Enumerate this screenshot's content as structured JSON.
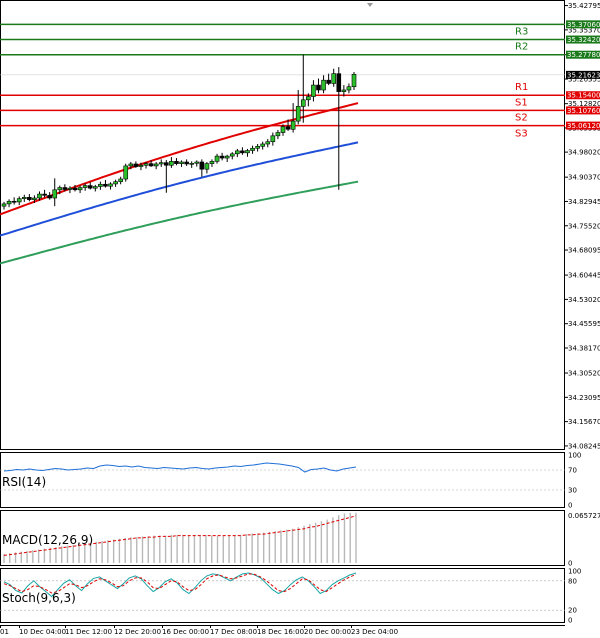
{
  "chart_data": {
    "type": "candlestick",
    "timeframe_labels": [
      "01",
      "10 Dec 04:00",
      "11 Dec 12:00",
      "12 Dec 20:00",
      "16 Dec 00:00",
      "17 Dec 08:00",
      "18 Dec 16:00",
      "20 Dec 00:00",
      "23 Dec 04:00"
    ],
    "price_ticks": [
      35.42795,
      35.3537,
      35.2778,
      35.20355,
      35.1282,
      35.05395,
      34.9802,
      34.9037,
      34.82945,
      34.7552,
      34.68095,
      34.60445,
      34.5302,
      34.45595,
      34.3817,
      34.3052,
      34.23095,
      34.1567,
      34.08245
    ],
    "ylim": [
      34.07,
      35.445
    ],
    "current_price": 35.21623,
    "levels": [
      {
        "label": "",
        "value": 35.3706,
        "tag": "35.37060",
        "color": "#1a7a1a"
      },
      {
        "label": "R3",
        "value": 35.3242,
        "tag": "35.32420",
        "color": "#1a7a1a"
      },
      {
        "label": "R2",
        "value": 35.2778,
        "tag": "35.27780",
        "color": "#1a7a1a"
      },
      {
        "label": "R1",
        "value": 35.154,
        "tag": "35.15400",
        "color": "#e00000"
      },
      {
        "label": "S1",
        "value": 35.1076,
        "tag": "35.10760",
        "color": "#e00000"
      },
      {
        "label": "S2",
        "value": 35.0612,
        "tag": "35.06120",
        "color": "#e00000"
      },
      {
        "label": "S3",
        "value": null,
        "tag": "",
        "color": "#e00000"
      }
    ],
    "candles": [
      [
        34.815,
        34.828,
        34.805,
        34.822
      ],
      [
        34.822,
        34.836,
        34.812,
        34.83
      ],
      [
        34.83,
        34.842,
        34.82,
        34.828
      ],
      [
        34.828,
        34.845,
        34.818,
        34.838
      ],
      [
        34.838,
        34.85,
        34.828,
        34.842
      ],
      [
        34.842,
        34.852,
        34.83,
        34.835
      ],
      [
        34.835,
        34.848,
        34.825,
        34.84
      ],
      [
        34.84,
        34.86,
        34.832,
        34.852
      ],
      [
        34.852,
        34.865,
        34.842,
        34.848
      ],
      [
        34.848,
        34.858,
        34.835,
        34.84
      ],
      [
        34.84,
        34.9,
        34.815,
        34.865
      ],
      [
        34.865,
        34.878,
        34.852,
        34.872
      ],
      [
        34.872,
        34.882,
        34.86,
        34.866
      ],
      [
        34.866,
        34.876,
        34.855,
        34.87
      ],
      [
        34.87,
        34.88,
        34.86,
        34.865
      ],
      [
        34.865,
        34.878,
        34.855,
        34.872
      ],
      [
        34.872,
        34.885,
        34.862,
        34.878
      ],
      [
        34.878,
        34.888,
        34.866,
        34.87
      ],
      [
        34.87,
        34.88,
        34.86,
        34.875
      ],
      [
        34.875,
        34.89,
        34.865,
        34.882
      ],
      [
        34.882,
        34.895,
        34.872,
        34.876
      ],
      [
        34.876,
        34.888,
        34.866,
        34.883
      ],
      [
        34.883,
        34.896,
        34.874,
        34.89
      ],
      [
        34.89,
        34.905,
        34.882,
        34.898
      ],
      [
        34.898,
        34.945,
        34.89,
        34.938
      ],
      [
        34.938,
        34.95,
        34.928,
        34.944
      ],
      [
        34.944,
        34.952,
        34.932,
        34.936
      ],
      [
        34.936,
        34.948,
        34.925,
        34.94
      ],
      [
        34.94,
        34.95,
        34.93,
        34.945
      ],
      [
        34.945,
        34.955,
        34.935,
        34.938
      ],
      [
        34.938,
        34.95,
        34.928,
        34.944
      ],
      [
        34.944,
        34.958,
        34.935,
        34.948
      ],
      [
        34.948,
        34.956,
        34.856,
        34.94
      ],
      [
        34.94,
        34.965,
        34.932,
        34.952
      ],
      [
        34.952,
        34.962,
        34.94,
        34.945
      ],
      [
        34.945,
        34.955,
        34.935,
        34.95
      ],
      [
        34.95,
        34.958,
        34.938,
        34.944
      ],
      [
        34.944,
        34.952,
        34.932,
        34.946
      ],
      [
        34.946,
        34.955,
        34.936,
        34.95
      ],
      [
        34.95,
        34.958,
        34.905,
        34.928
      ],
      [
        34.928,
        34.95,
        34.915,
        34.945
      ],
      [
        34.945,
        34.958,
        34.935,
        34.952
      ],
      [
        34.952,
        34.975,
        34.945,
        34.968
      ],
      [
        34.968,
        34.978,
        34.955,
        34.962
      ],
      [
        34.962,
        34.972,
        34.95,
        34.968
      ],
      [
        34.968,
        34.98,
        34.958,
        34.975
      ],
      [
        34.975,
        34.99,
        34.965,
        34.984
      ],
      [
        34.984,
        34.995,
        34.972,
        34.978
      ],
      [
        34.978,
        34.99,
        34.966,
        34.985
      ],
      [
        34.985,
        35.0,
        34.975,
        34.992
      ],
      [
        34.992,
        35.005,
        34.982,
        34.998
      ],
      [
        34.998,
        35.012,
        34.988,
        35.005
      ],
      [
        35.005,
        35.02,
        34.995,
        35.012
      ],
      [
        35.012,
        35.04,
        35.0,
        35.03
      ],
      [
        35.03,
        35.048,
        35.02,
        35.04
      ],
      [
        35.04,
        35.065,
        35.03,
        35.058
      ],
      [
        35.058,
        35.08,
        35.045,
        35.05
      ],
      [
        35.05,
        35.13,
        35.04,
        35.075
      ],
      [
        35.075,
        35.17,
        35.065,
        35.12
      ],
      [
        35.12,
        35.278,
        35.07,
        35.14
      ],
      [
        35.14,
        35.16,
        35.12,
        35.15
      ],
      [
        35.15,
        35.2,
        35.135,
        35.185
      ],
      [
        35.185,
        35.205,
        35.16,
        35.17
      ],
      [
        35.17,
        35.215,
        35.16,
        35.2
      ],
      [
        35.2,
        35.22,
        35.185,
        35.19
      ],
      [
        35.19,
        35.235,
        35.18,
        35.22
      ],
      [
        35.22,
        35.24,
        34.865,
        35.165
      ],
      [
        35.165,
        35.185,
        35.15,
        35.17
      ],
      [
        35.17,
        35.19,
        35.16,
        35.18
      ],
      [
        35.18,
        35.225,
        35.17,
        35.218
      ]
    ],
    "ma_series": [
      {
        "color": "#e00000",
        "start": 34.79,
        "end": 35.13
      },
      {
        "color": "#1f4fd8",
        "start": 34.725,
        "end": 35.01
      },
      {
        "color": "#2e9e5a",
        "start": 34.64,
        "end": 34.89
      }
    ],
    "indicators": [
      {
        "name": "RSI(14)",
        "ticks": [
          "100",
          "70",
          "30",
          "0"
        ],
        "levels": [
          70,
          30
        ],
        "values": [
          68,
          69,
          71,
          70,
          72,
          70,
          69,
          71,
          73,
          72,
          70,
          71,
          72,
          74,
          73,
          78,
          80,
          79,
          77,
          78,
          76,
          78,
          75,
          74,
          73,
          75,
          74,
          73,
          72,
          74,
          75,
          73,
          72,
          74,
          75,
          76,
          78,
          77,
          79,
          80,
          82,
          84,
          83,
          82,
          80,
          78,
          75,
          66,
          71,
          72,
          74,
          70,
          68,
          72,
          74,
          76
        ]
      },
      {
        "name": "MACD(12,26,9)",
        "ticks": [
          "0.065727",
          "0"
        ],
        "max": 0.065727,
        "hist": [
          0.012,
          0.013,
          0.014,
          0.015,
          0.016,
          0.017,
          0.018,
          0.019,
          0.02,
          0.021,
          0.022,
          0.023,
          0.024,
          0.025,
          0.026,
          0.027,
          0.028,
          0.029,
          0.03,
          0.031,
          0.032,
          0.033,
          0.034,
          0.034,
          0.035,
          0.035,
          0.036,
          0.036,
          0.036,
          0.037,
          0.037,
          0.037,
          0.036,
          0.037,
          0.037,
          0.037,
          0.036,
          0.036,
          0.036,
          0.036,
          0.037,
          0.037,
          0.038,
          0.039,
          0.039,
          0.04,
          0.041,
          0.042,
          0.043,
          0.044,
          0.045,
          0.047,
          0.049,
          0.051,
          0.053,
          0.055,
          0.057,
          0.06,
          0.063,
          0.065,
          0.066,
          0.066
        ],
        "signal": [
          0.01,
          0.011,
          0.012,
          0.013,
          0.014,
          0.015,
          0.016,
          0.017,
          0.018,
          0.019,
          0.02,
          0.021,
          0.022,
          0.023,
          0.024,
          0.025,
          0.026,
          0.027,
          0.028,
          0.029,
          0.03,
          0.031,
          0.032,
          0.033,
          0.033,
          0.034,
          0.034,
          0.035,
          0.035,
          0.035,
          0.036,
          0.036,
          0.036,
          0.036,
          0.036,
          0.036,
          0.036,
          0.036,
          0.036,
          0.036,
          0.036,
          0.036,
          0.037,
          0.037,
          0.038,
          0.038,
          0.039,
          0.04,
          0.041,
          0.042,
          0.043,
          0.044,
          0.045,
          0.047,
          0.048,
          0.05,
          0.052,
          0.054,
          0.056,
          0.058,
          0.06,
          0.062
        ]
      },
      {
        "name": "Stoch(9,6,3)",
        "ticks": [
          "100",
          "80",
          "20",
          "0"
        ],
        "levels": [
          80,
          20
        ],
        "main": [
          78,
          72,
          60,
          55,
          70,
          80,
          68,
          58,
          48,
          62,
          75,
          82,
          70,
          60,
          74,
          85,
          88,
          80,
          72,
          64,
          74,
          86,
          90,
          84,
          70,
          58,
          66,
          78,
          84,
          76,
          62,
          54,
          66,
          80,
          90,
          94,
          92,
          86,
          80,
          88,
          94,
          96,
          92,
          86,
          74,
          62,
          54,
          60,
          72,
          82,
          88,
          80,
          68,
          54,
          60,
          72,
          80,
          86,
          92,
          96
        ],
        "signal": [
          74,
          70,
          64,
          58,
          62,
          70,
          68,
          62,
          55,
          58,
          66,
          74,
          72,
          66,
          70,
          78,
          84,
          82,
          76,
          68,
          70,
          80,
          86,
          86,
          78,
          66,
          64,
          72,
          80,
          78,
          68,
          60,
          62,
          72,
          84,
          90,
          92,
          88,
          84,
          86,
          90,
          94,
          93,
          88,
          80,
          70,
          60,
          58,
          64,
          74,
          84,
          82,
          72,
          62,
          58,
          66,
          74,
          82,
          88,
          93
        ]
      }
    ]
  }
}
